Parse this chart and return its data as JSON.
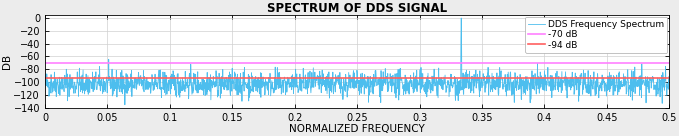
{
  "title": "SPECTRUM OF DDS SIGNAL",
  "xlabel": "NORMALIZED FREQUENCY",
  "ylabel": "DB",
  "xlim": [
    0,
    0.5
  ],
  "ylim": [
    -140,
    5
  ],
  "yticks": [
    0,
    -20,
    -40,
    -60,
    -80,
    -100,
    -120,
    -140
  ],
  "xticks": [
    0,
    0.05,
    0.1,
    0.15,
    0.2,
    0.25,
    0.3,
    0.35,
    0.4,
    0.45,
    0.5
  ],
  "xtick_labels": [
    "0",
    "0.05",
    "0.1",
    "0.15",
    "0.2",
    "0.25",
    "0.3",
    "0.35",
    "0.4",
    "0.45",
    "0.5"
  ],
  "line_color": "#4DBEEE",
  "hline1_y": -70,
  "hline1_color": "#FF80FF",
  "hline1_label": "-70 dB",
  "hline2_y": -94,
  "hline2_color": "#FF6060",
  "hline2_label": "-94 dB",
  "legend_label": "DDS Frequency Spectrum",
  "signal_peak_freq": 0.3333,
  "signal_peak_db": 0,
  "noise_floor": -103,
  "noise_std": 10,
  "seed": 42,
  "n_points": 2048,
  "figure_bg": "#ECECEC",
  "plot_bg": "#FFFFFF",
  "title_fontsize": 8.5,
  "axis_label_fontsize": 7.5,
  "tick_fontsize": 7,
  "legend_fontsize": 6.5,
  "grid_color": "#D0D0D0",
  "grid_lw": 0.5,
  "signal_lw": 0.6
}
